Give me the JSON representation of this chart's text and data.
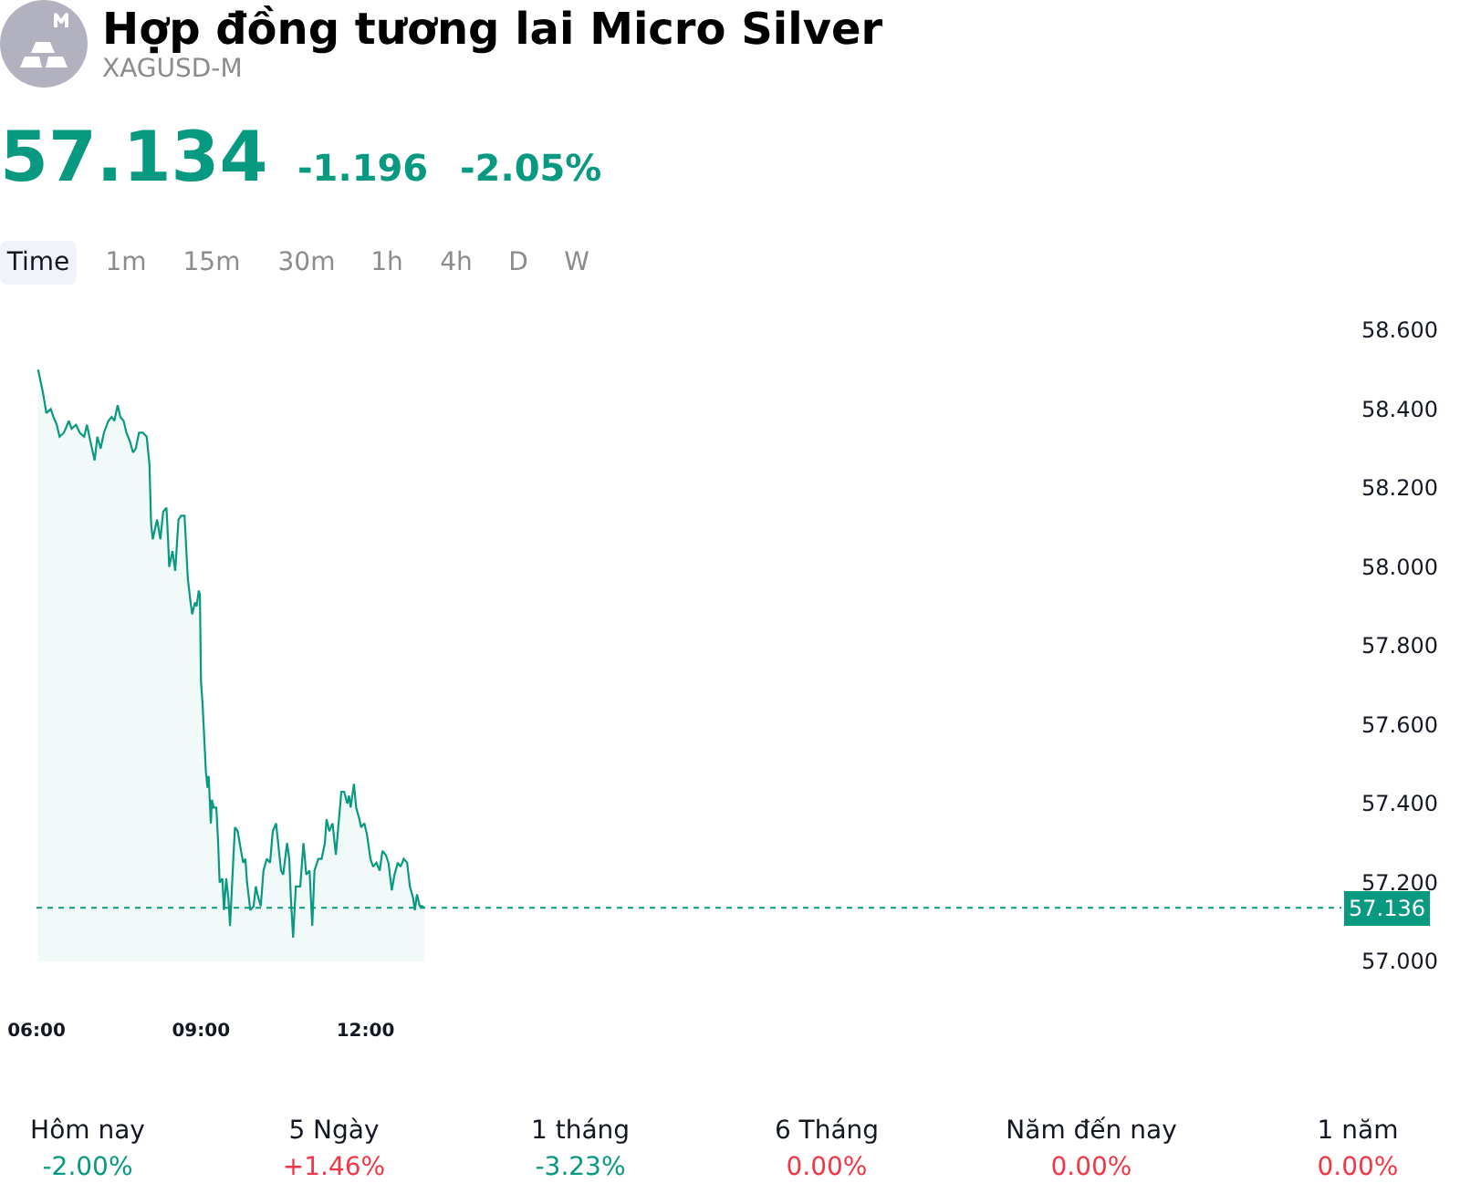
{
  "chart_data": {
    "type": "area",
    "title": "Hợp đồng tương lai Micro Silver",
    "subtitle": "XAGUSD-M",
    "annotations": [
      "57.134",
      "-1.196",
      "-2.05%",
      "Time",
      "1m",
      "15m",
      "30m",
      "1h",
      "4h",
      "D",
      "W",
      "Hôm nay",
      "5 Ngày",
      "1 tháng",
      "6 Tháng",
      "Năm đến nay",
      "1 năm",
      "-2.00%",
      "+1.46%",
      "-3.23%",
      "0.00%",
      "0.00%",
      "0.00%"
    ],
    "x": [
      6.03,
      6.12,
      6.18,
      6.26,
      6.31,
      6.37,
      6.42,
      6.5,
      6.59,
      6.64,
      6.72,
      6.79,
      6.87,
      6.92,
      6.98,
      7.06,
      7.11,
      7.17,
      7.23,
      7.31,
      7.37,
      7.42,
      7.48,
      7.53,
      7.59,
      7.64,
      7.7,
      7.76,
      7.81,
      7.87,
      7.94,
      8.01,
      8.06,
      8.09,
      8.12,
      8.2,
      8.26,
      8.31,
      8.37,
      8.4,
      8.42,
      8.48,
      8.53,
      8.59,
      8.64,
      8.7,
      8.76,
      8.81,
      8.84,
      8.89,
      8.92,
      8.96,
      8.98,
      9.0,
      9.03,
      9.09,
      9.12,
      9.14,
      9.18,
      9.2,
      9.23,
      9.28,
      9.31,
      9.34,
      9.39,
      9.42,
      9.46,
      9.5,
      9.53,
      9.59,
      9.62,
      9.67,
      9.73,
      9.77,
      9.81,
      9.84,
      9.9,
      9.96,
      10.0,
      10.03,
      10.09,
      10.14,
      10.2,
      10.26,
      10.31,
      10.37,
      10.46,
      10.5,
      10.57,
      10.61,
      10.64,
      10.68,
      10.73,
      10.81,
      10.87,
      10.92,
      10.98,
      11.03,
      11.07,
      11.14,
      11.2,
      11.26,
      11.29,
      11.34,
      11.4,
      11.46,
      11.51,
      11.56,
      11.61,
      11.67,
      11.7,
      11.73,
      11.79,
      11.83,
      11.89,
      11.92,
      11.98,
      12.03,
      12.09,
      12.14,
      12.2,
      12.26,
      12.31,
      12.37,
      12.42,
      12.48,
      12.53,
      12.59,
      12.64,
      12.7,
      12.76,
      12.81,
      12.87,
      12.9,
      12.94,
      12.99,
      13.03,
      13.07
    ],
    "values": [
      58.5,
      58.44,
      58.39,
      58.4,
      58.38,
      58.36,
      58.33,
      58.34,
      58.37,
      58.35,
      58.36,
      58.34,
      58.33,
      58.36,
      58.32,
      58.27,
      58.33,
      58.3,
      58.34,
      58.37,
      58.38,
      58.37,
      58.41,
      58.38,
      58.37,
      58.34,
      58.32,
      58.29,
      58.3,
      58.34,
      58.34,
      58.33,
      58.26,
      58.11,
      58.07,
      58.12,
      58.07,
      58.14,
      58.15,
      58.07,
      58.0,
      58.04,
      57.99,
      58.12,
      58.13,
      58.13,
      57.97,
      57.91,
      57.88,
      57.91,
      57.9,
      57.94,
      57.93,
      57.71,
      57.65,
      57.48,
      57.44,
      57.47,
      57.35,
      57.41,
      57.39,
      57.39,
      57.31,
      57.2,
      57.21,
      57.13,
      57.21,
      57.16,
      57.09,
      57.26,
      57.34,
      57.33,
      57.28,
      57.25,
      57.26,
      57.2,
      57.13,
      57.14,
      57.19,
      57.17,
      57.14,
      57.23,
      57.26,
      57.25,
      57.33,
      57.35,
      57.23,
      57.22,
      57.3,
      57.26,
      57.16,
      57.06,
      57.19,
      57.19,
      57.3,
      57.22,
      57.23,
      57.09,
      57.23,
      57.26,
      57.26,
      57.3,
      57.36,
      57.33,
      57.35,
      57.27,
      57.35,
      57.43,
      57.43,
      57.4,
      57.42,
      57.39,
      57.45,
      57.39,
      57.36,
      57.34,
      57.35,
      57.32,
      57.26,
      57.24,
      57.25,
      57.23,
      57.28,
      57.27,
      57.25,
      57.18,
      57.22,
      57.25,
      57.24,
      57.26,
      57.25,
      57.19,
      57.16,
      57.13,
      57.17,
      57.14,
      57.14,
      57.136
    ],
    "color": "#089981",
    "xlim": [
      6,
      29.8
    ],
    "xticks": [
      {
        "value": 6,
        "label": "06:00"
      },
      {
        "value": 9,
        "label": "09:00"
      },
      {
        "value": 12,
        "label": "12:00"
      }
    ],
    "ylim": [
      57,
      58.6
    ],
    "yticks": [
      {
        "value": 57,
        "label": "57.000"
      },
      {
        "value": 57.2,
        "label": "57.200"
      },
      {
        "value": 57.4,
        "label": "57.400"
      },
      {
        "value": 57.6,
        "label": "57.600"
      },
      {
        "value": 57.8,
        "label": "57.800"
      },
      {
        "value": 58,
        "label": "58.000"
      },
      {
        "value": 58.2,
        "label": "58.200"
      },
      {
        "value": 58.4,
        "label": "58.400"
      },
      {
        "value": 58.6,
        "label": "58.600"
      }
    ],
    "ref_lines": [
      {
        "axis": "y",
        "value": 57.136,
        "label": "57.136",
        "color": "#089981",
        "line_style": "dotted"
      }
    ]
  }
}
